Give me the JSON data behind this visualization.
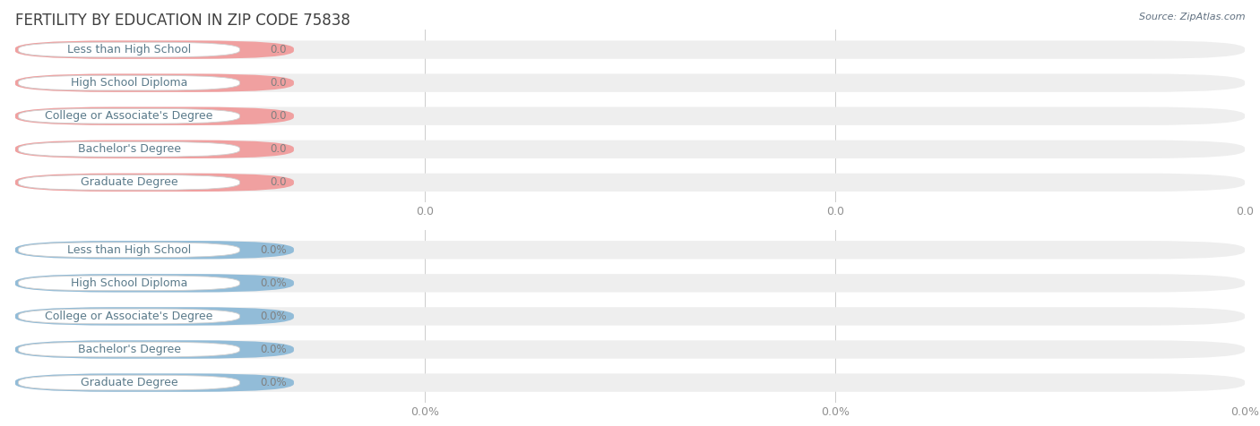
{
  "title": "FERTILITY BY EDUCATION IN ZIP CODE 75838",
  "source": "Source: ZipAtlas.com",
  "categories": [
    "Less than High School",
    "High School Diploma",
    "College or Associate's Degree",
    "Bachelor's Degree",
    "Graduate Degree"
  ],
  "top_values": [
    0.0,
    0.0,
    0.0,
    0.0,
    0.0
  ],
  "bottom_values": [
    0.0,
    0.0,
    0.0,
    0.0,
    0.0
  ],
  "top_bar_color": "#f0a0a0",
  "bottom_bar_color": "#92bcd8",
  "bar_bg_color": "#eeeeee",
  "background_color": "#ffffff",
  "title_color": "#404040",
  "label_text_color": "#5a7a8a",
  "value_text_color": "#808080",
  "grid_color": "#cccccc",
  "source_color": "#607080",
  "top_value_labels": [
    "0.0",
    "0.0",
    "0.0",
    "0.0",
    "0.0"
  ],
  "bottom_value_labels": [
    "0.0%",
    "0.0%",
    "0.0%",
    "0.0%",
    "0.0%"
  ],
  "top_tick_labels": [
    "0.0",
    "0.0",
    "0.0"
  ],
  "bottom_tick_labels": [
    "0.0%",
    "0.0%",
    "0.0%"
  ],
  "title_fontsize": 12,
  "label_fontsize": 9,
  "value_fontsize": 8.5,
  "tick_fontsize": 9,
  "source_fontsize": 8
}
